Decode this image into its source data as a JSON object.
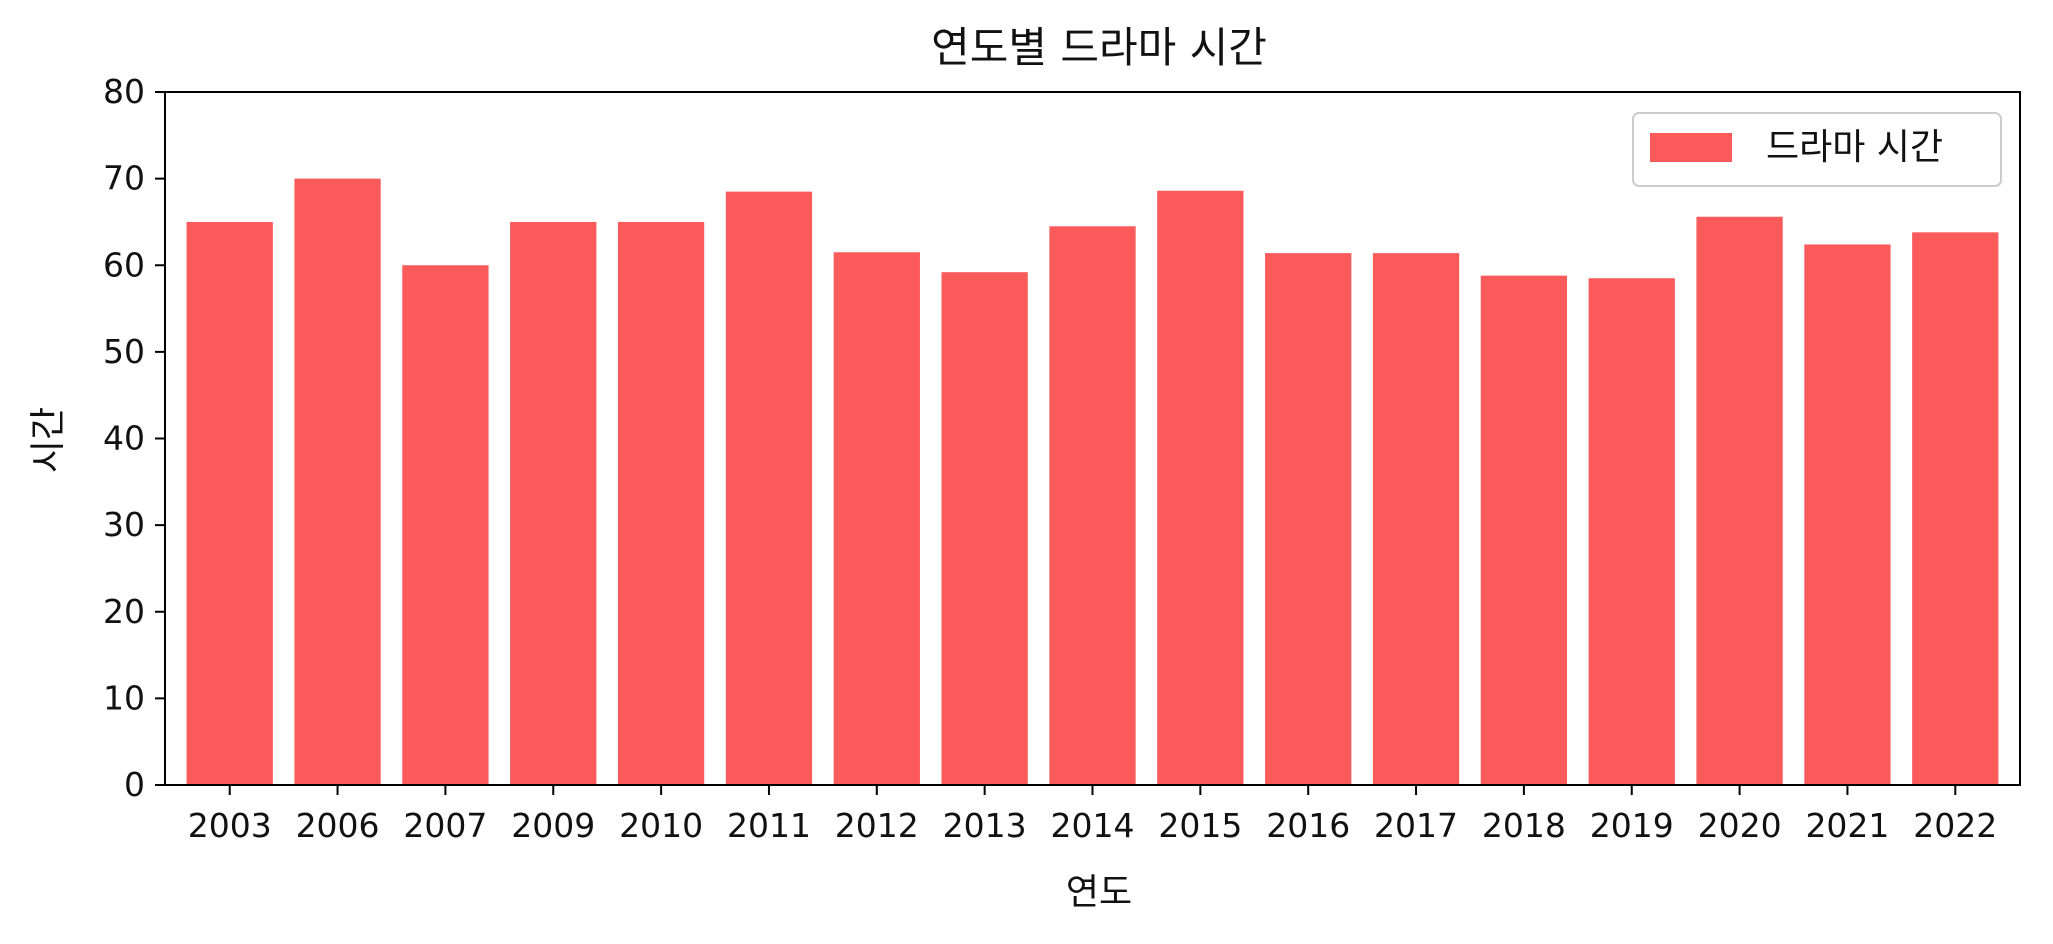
{
  "chart_data": {
    "type": "bar",
    "title": "연도별 드라마 시간",
    "xlabel": "연도",
    "ylabel": "시간",
    "ylim": [
      0,
      80
    ],
    "yticks": [
      0,
      10,
      20,
      30,
      40,
      50,
      60,
      70,
      80
    ],
    "grid": false,
    "legend": {
      "placement": "top-right"
    },
    "categories": [
      "2003",
      "2006",
      "2007",
      "2009",
      "2010",
      "2011",
      "2012",
      "2013",
      "2014",
      "2015",
      "2016",
      "2017",
      "2018",
      "2019",
      "2020",
      "2021",
      "2022"
    ],
    "series": [
      {
        "name": "드라마 시간",
        "color": "#fa5a5a",
        "values": [
          65,
          70,
          60,
          65,
          65,
          68.5,
          61.5,
          59.2,
          64.5,
          68.6,
          61.4,
          61.4,
          58.8,
          58.5,
          65.6,
          62.4,
          63.8
        ]
      }
    ]
  }
}
